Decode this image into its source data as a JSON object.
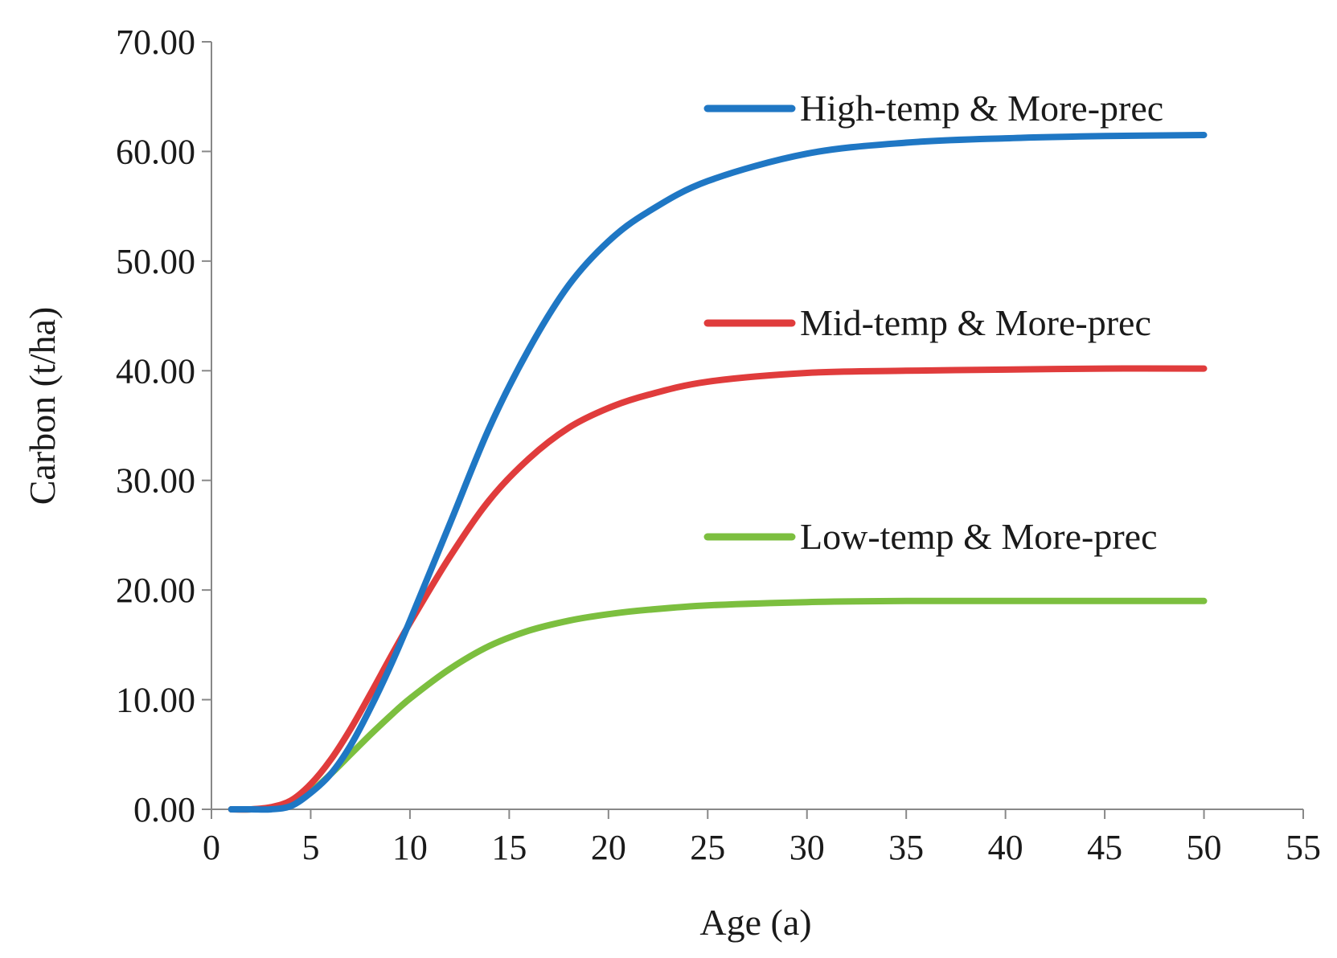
{
  "chart_data": {
    "type": "line",
    "title": "",
    "xlabel": "Age (a)",
    "ylabel": "Carbon (t/ha)",
    "xlim": [
      0,
      55
    ],
    "ylim": [
      0,
      70
    ],
    "x_ticks": [
      "0",
      "5",
      "10",
      "15",
      "20",
      "25",
      "30",
      "35",
      "40",
      "45",
      "50",
      "55"
    ],
    "y_ticks": [
      "0.00",
      "10.00",
      "20.00",
      "30.00",
      "40.00",
      "50.00",
      "60.00",
      "70.00"
    ],
    "grid": false,
    "legend_position": "right, next to each series",
    "x": [
      1,
      2,
      3,
      4,
      5,
      6,
      7,
      8,
      9,
      10,
      12,
      14,
      16,
      18,
      20,
      22,
      25,
      30,
      35,
      40,
      45,
      50
    ],
    "series": [
      {
        "name": "High-temp & More-prec",
        "color": "#1f77c4",
        "values": [
          0.0,
          0.0,
          0.0,
          0.3,
          1.5,
          3.2,
          5.8,
          9.2,
          13.0,
          17.2,
          26.0,
          34.8,
          42.0,
          47.8,
          51.8,
          54.5,
          57.3,
          59.8,
          60.8,
          61.2,
          61.4,
          61.5
        ]
      },
      {
        "name": "Mid-temp & More-prec",
        "color": "#e03c3c",
        "values": [
          0.0,
          0.0,
          0.2,
          0.8,
          2.3,
          4.5,
          7.3,
          10.5,
          13.8,
          17.0,
          23.0,
          28.2,
          32.0,
          34.8,
          36.6,
          37.8,
          39.0,
          39.8,
          40.0,
          40.1,
          40.2,
          40.2
        ]
      },
      {
        "name": "Low-temp & More-prec",
        "color": "#7cbf3f",
        "values": [
          0.0,
          0.0,
          0.1,
          0.5,
          1.6,
          3.2,
          5.0,
          6.8,
          8.5,
          10.1,
          12.8,
          14.9,
          16.3,
          17.2,
          17.8,
          18.2,
          18.6,
          18.9,
          19.0,
          19.0,
          19.0,
          19.0
        ]
      }
    ]
  }
}
